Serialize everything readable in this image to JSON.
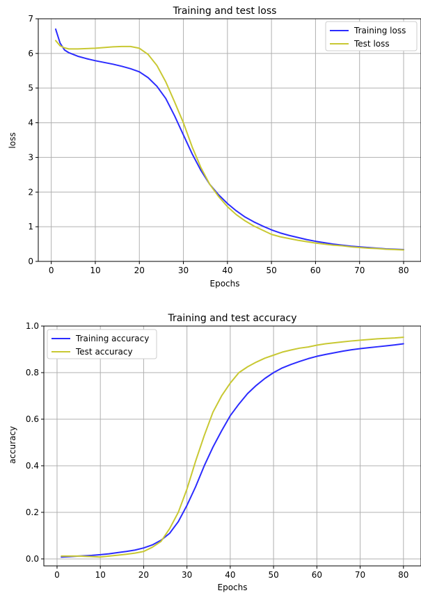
{
  "chart_data": [
    {
      "type": "line",
      "title": "Training and test loss",
      "xlabel": "Epochs",
      "ylabel": "loss",
      "xlim": [
        -2.95,
        83.95
      ],
      "ylim": [
        0,
        7
      ],
      "xticks": [
        0,
        10,
        20,
        30,
        40,
        50,
        60,
        70,
        80
      ],
      "yticks": [
        0,
        1,
        2,
        3,
        4,
        5,
        6,
        7
      ],
      "grid": true,
      "legend_position": "upper right",
      "series": [
        {
          "name": "Training loss",
          "color": "#2b2bff",
          "x": [
            1,
            2,
            3,
            4,
            6,
            8,
            10,
            12,
            14,
            16,
            18,
            20,
            22,
            24,
            26,
            28,
            30,
            32,
            34,
            36,
            38,
            40,
            42,
            44,
            46,
            48,
            50,
            52,
            54,
            56,
            58,
            60,
            62,
            64,
            66,
            68,
            70,
            72,
            74,
            76,
            78,
            80
          ],
          "y": [
            6.7,
            6.3,
            6.1,
            6.02,
            5.92,
            5.85,
            5.79,
            5.74,
            5.69,
            5.63,
            5.56,
            5.47,
            5.3,
            5.05,
            4.7,
            4.2,
            3.65,
            3.1,
            2.62,
            2.22,
            1.92,
            1.67,
            1.46,
            1.28,
            1.14,
            1.02,
            0.91,
            0.82,
            0.75,
            0.69,
            0.63,
            0.58,
            0.54,
            0.5,
            0.47,
            0.44,
            0.42,
            0.4,
            0.38,
            0.36,
            0.35,
            0.34
          ]
        },
        {
          "name": "Test loss",
          "color": "#c8c832",
          "x": [
            1,
            2,
            3,
            4,
            6,
            8,
            10,
            12,
            14,
            16,
            18,
            20,
            22,
            24,
            26,
            28,
            30,
            32,
            34,
            36,
            38,
            40,
            42,
            44,
            46,
            48,
            50,
            52,
            54,
            56,
            58,
            60,
            62,
            64,
            66,
            68,
            70,
            72,
            74,
            76,
            78,
            80
          ],
          "y": [
            6.37,
            6.22,
            6.16,
            6.13,
            6.13,
            6.14,
            6.15,
            6.17,
            6.19,
            6.2,
            6.2,
            6.15,
            5.97,
            5.65,
            5.18,
            4.6,
            4.0,
            3.3,
            2.7,
            2.22,
            1.87,
            1.58,
            1.35,
            1.17,
            1.02,
            0.9,
            0.78,
            0.71,
            0.66,
            0.61,
            0.57,
            0.53,
            0.5,
            0.47,
            0.45,
            0.42,
            0.4,
            0.38,
            0.37,
            0.35,
            0.34,
            0.33
          ]
        }
      ]
    },
    {
      "type": "line",
      "title": "Training and test accuracy",
      "xlabel": "Epochs",
      "ylabel": "accuracy",
      "xlim": [
        -3.05,
        84.05
      ],
      "ylim": [
        -0.03,
        1.0
      ],
      "xticks": [
        0,
        10,
        20,
        30,
        40,
        50,
        60,
        70,
        80
      ],
      "yticks": [
        0.0,
        0.2,
        0.4,
        0.6,
        0.8,
        1.0
      ],
      "ytick_labels": [
        "0.0",
        "0.2",
        "0.4",
        "0.6",
        "0.8",
        "1.0"
      ],
      "grid": true,
      "legend_position": "upper left",
      "series": [
        {
          "name": "Training accuracy",
          "color": "#2b2bff",
          "x": [
            1,
            3,
            5,
            8,
            10,
            12,
            14,
            16,
            18,
            20,
            22,
            24,
            26,
            28,
            30,
            32,
            34,
            36,
            38,
            40,
            42,
            44,
            46,
            48,
            50,
            52,
            54,
            56,
            58,
            60,
            62,
            64,
            66,
            68,
            70,
            72,
            74,
            76,
            78,
            80
          ],
          "y": [
            0.008,
            0.01,
            0.012,
            0.015,
            0.018,
            0.022,
            0.027,
            0.032,
            0.038,
            0.047,
            0.06,
            0.08,
            0.11,
            0.16,
            0.23,
            0.31,
            0.4,
            0.48,
            0.55,
            0.615,
            0.665,
            0.71,
            0.745,
            0.775,
            0.8,
            0.82,
            0.835,
            0.848,
            0.86,
            0.87,
            0.878,
            0.885,
            0.892,
            0.898,
            0.903,
            0.907,
            0.911,
            0.915,
            0.919,
            0.924
          ]
        },
        {
          "name": "Test accuracy",
          "color": "#c8c832",
          "x": [
            1,
            3,
            5,
            8,
            10,
            12,
            14,
            16,
            18,
            20,
            22,
            24,
            26,
            28,
            30,
            32,
            34,
            36,
            38,
            40,
            42,
            44,
            46,
            48,
            50,
            52,
            54,
            56,
            58,
            60,
            62,
            64,
            66,
            68,
            70,
            72,
            74,
            76,
            78,
            80
          ],
          "y": [
            0.012,
            0.012,
            0.012,
            0.01,
            0.008,
            0.012,
            0.016,
            0.02,
            0.025,
            0.032,
            0.05,
            0.075,
            0.13,
            0.2,
            0.3,
            0.42,
            0.53,
            0.63,
            0.7,
            0.755,
            0.8,
            0.825,
            0.845,
            0.862,
            0.875,
            0.888,
            0.897,
            0.905,
            0.91,
            0.918,
            0.924,
            0.928,
            0.932,
            0.936,
            0.939,
            0.942,
            0.945,
            0.947,
            0.949,
            0.952
          ]
        }
      ]
    }
  ]
}
